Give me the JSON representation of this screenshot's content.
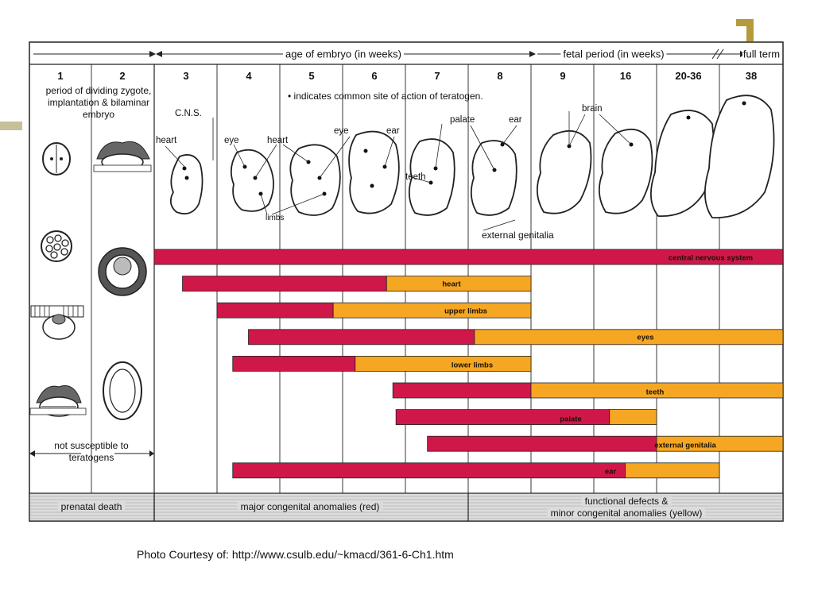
{
  "header": {
    "age_label": "age of embryo (in weeks)",
    "fetal_label": "fetal period (in weeks)",
    "full_term_label": "full term"
  },
  "weeks": [
    "1",
    "2",
    "3",
    "4",
    "5",
    "6",
    "7",
    "8",
    "9",
    "16",
    "20-36",
    "38"
  ],
  "early_period_text": "period of dividing zygote, implantation & bilaminar embryo",
  "legend_note": "• indicates common site of action of teratogen.",
  "embryo_labels": {
    "cns": "C.N.S.",
    "heart1": "heart",
    "eye1": "eye",
    "heart2": "heart",
    "eye2": "eye",
    "ear1": "ear",
    "limbs": "limbs",
    "teeth": "teeth",
    "palate": "palate",
    "ear2": "ear",
    "brain": "brain",
    "genitalia": "external genitalia"
  },
  "not_susceptible": "not susceptible to teratogens",
  "colors": {
    "major": "#d0174a",
    "minor": "#f5a623",
    "footer_bg": "#dcdcdc"
  },
  "bars": [
    {
      "label": "central nervous system",
      "red_start": 3,
      "red_end": 20,
      "yellow_end": 39
    },
    {
      "label": "heart",
      "red_start": 3.45,
      "red_end": 6.7,
      "yellow_end": 9
    },
    {
      "label": "upper limbs",
      "red_start": 4,
      "red_end": 5.85,
      "yellow_end": 9
    },
    {
      "label": "eyes",
      "red_start": 4.5,
      "red_end": 8.1,
      "yellow_end": 39
    },
    {
      "label": "lower limbs",
      "red_start": 4.25,
      "red_end": 6.2,
      "yellow_end": 9
    },
    {
      "label": "teeth",
      "red_start": 6.8,
      "red_end": 9,
      "yellow_end": 39
    },
    {
      "label": "palate",
      "red_start": 6.85,
      "red_end": 10.25,
      "yellow_end": 11
    },
    {
      "label": "external genitalia",
      "red_start": 7.35,
      "red_end": 11,
      "yellow_end": 39
    },
    {
      "label": "ear",
      "red_start": 4.25,
      "red_end": 10.5,
      "yellow_end": 12
    }
  ],
  "footer": {
    "prenatal": "prenatal death",
    "major": "major congenital anomalies (red)",
    "minor_line1": "functional defects &",
    "minor_line2": "minor congenital anomalies (yellow)"
  },
  "caption": "Photo Courtesy of: http://www.csulb.edu/~kmacd/361-6-Ch1.htm"
}
